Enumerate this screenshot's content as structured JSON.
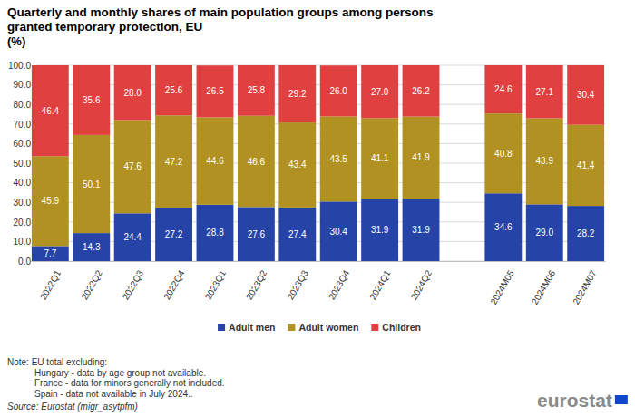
{
  "chart_data": {
    "type": "bar",
    "stacked": true,
    "title": "Quarterly and monthly shares of main population groups among persons granted temporary protection, EU",
    "subtitle": "(%)",
    "categories": [
      "2022Q1",
      "2022Q2",
      "2022Q3",
      "2022Q4",
      "2023Q1",
      "2023Q2",
      "2023Q3",
      "2023Q4",
      "2024Q1",
      "2024Q2",
      null,
      "2024M05",
      "2024M06",
      "2024M07"
    ],
    "series": [
      {
        "name": "Adult men",
        "color": "#2644a7",
        "values": [
          7.7,
          14.3,
          24.4,
          27.2,
          28.8,
          27.6,
          27.4,
          30.4,
          31.9,
          31.9,
          null,
          34.6,
          29.0,
          28.2
        ],
        "value_labels": [
          "7.7",
          "14.3",
          "24.4",
          "27.2",
          "28.8",
          "27.6",
          "27.4",
          "30.4",
          "31.9",
          "31.9",
          null,
          "34.6",
          "29.0",
          "28.2"
        ]
      },
      {
        "name": "Adult women",
        "color": "#b09121",
        "values": [
          45.9,
          50.1,
          47.6,
          47.2,
          44.6,
          46.6,
          43.4,
          43.5,
          41.1,
          41.9,
          null,
          40.8,
          43.9,
          41.4
        ],
        "value_labels": [
          "45.9",
          "50.1",
          "47.6",
          "47.2",
          "44.6",
          "46.6",
          "43.4",
          "43.5",
          "41.1",
          "41.9",
          null,
          "40.8",
          "43.9",
          "41.4"
        ]
      },
      {
        "name": "Children",
        "color": "#e04040",
        "values": [
          46.4,
          35.6,
          28.0,
          25.6,
          26.5,
          25.8,
          29.2,
          26.0,
          27.0,
          26.2,
          null,
          24.6,
          27.1,
          30.4
        ],
        "value_labels": [
          "46.4",
          "35.6",
          "28.0",
          "25.6",
          "26.5",
          "25.8",
          "29.2",
          "26.0",
          "27.0",
          "26.2",
          null,
          "24.6",
          "27.1",
          "30.4"
        ]
      }
    ],
    "ylim": [
      0,
      100
    ],
    "yticks": [
      {
        "value": 0,
        "label": "0.0"
      },
      {
        "value": 10,
        "label": "10.0"
      },
      {
        "value": 20,
        "label": "20.0"
      },
      {
        "value": 30,
        "label": "30.0"
      },
      {
        "value": 40,
        "label": "40.0"
      },
      {
        "value": 50,
        "label": "50.0"
      },
      {
        "value": 60,
        "label": "60.0"
      },
      {
        "value": 70,
        "label": "70.0"
      },
      {
        "value": 80,
        "label": "80.0"
      },
      {
        "value": 90,
        "label": "90.0"
      },
      {
        "value": 100,
        "label": "100.0"
      }
    ],
    "grid": true,
    "data_labels": true,
    "legend": "bottom",
    "notes": [
      "Note: EU total excluding:",
      "Hungary - data by age group not available.",
      "France - data for minors generally not included.",
      "Spain - data not available in July 2024.."
    ],
    "source": "Source: Eurostat (migr_asytpfm)",
    "logo": "eurostat"
  }
}
